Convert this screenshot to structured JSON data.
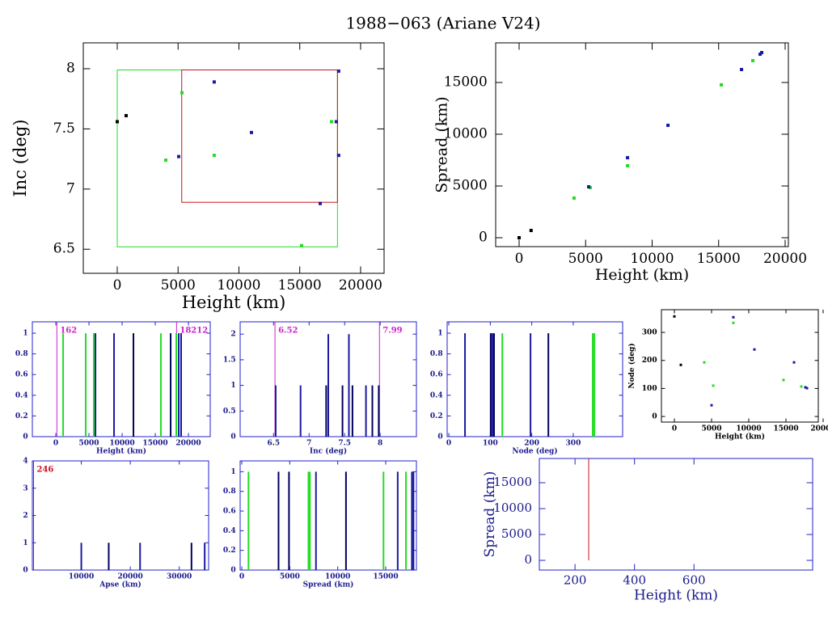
{
  "title": "1988−063 (Ariane V24)",
  "chart_data": [
    {
      "type": "scatter",
      "xlabel": "Height (km)",
      "ylabel": "Inc (deg)",
      "xlim": [
        -2790,
        21930
      ],
      "ylim": [
        6.3,
        8.215
      ],
      "xticks": [
        0,
        5000,
        10000,
        15000,
        20000
      ],
      "yticks": [
        6.5,
        7,
        7.5,
        8
      ],
      "boxes": [
        {
          "color": "#22dd22",
          "x": [
            0,
            18100
          ],
          "y": [
            6.52,
            7.99
          ]
        },
        {
          "color": "#cc1122",
          "x": [
            5300,
            18100
          ],
          "y": [
            6.89,
            7.99
          ]
        }
      ],
      "series": [
        {
          "color": "#000000",
          "x": [
            0,
            730
          ],
          "values": [
            7.56,
            7.61
          ]
        },
        {
          "color": "#22dd22",
          "x": [
            3990,
            5320,
            7970,
            15150,
            17610
          ],
          "values": [
            7.24,
            7.8,
            7.28,
            6.53,
            7.56
          ]
        },
        {
          "color": "#1a1aa0",
          "x": [
            5050,
            7970,
            11030,
            16680,
            18000,
            18200,
            18200
          ],
          "values": [
            7.27,
            7.89,
            7.47,
            6.88,
            7.56,
            7.98,
            7.28
          ]
        }
      ]
    },
    {
      "type": "scatter",
      "xlabel": "Height (km)",
      "ylabel": "Spread (km)",
      "xlim": [
        -1763,
        20243
      ],
      "ylim": [
        -859,
        18828
      ],
      "xticks": [
        0,
        5000,
        10000,
        15000,
        20000
      ],
      "yticks": [
        0,
        5000,
        10000,
        15000
      ],
      "series": [
        {
          "color": "#000000",
          "x": [
            0,
            900
          ],
          "values": [
            0,
            700
          ]
        },
        {
          "color": "#22dd22",
          "x": [
            4130,
            5350,
            8150,
            15200,
            17570
          ],
          "values": [
            3830,
            4840,
            6950,
            14770,
            17110
          ]
        },
        {
          "color": "#1a1aa0",
          "x": [
            5230,
            8150,
            11190,
            16720,
            18120,
            18240
          ],
          "values": [
            4920,
            7730,
            10860,
            16250,
            17730,
            17890
          ]
        }
      ]
    },
    {
      "type": "spike",
      "xlabel": "Height (km)",
      "xlim": [
        -3540,
        23290
      ],
      "ylim": [
        0,
        1.11
      ],
      "xticks": [
        0,
        5000,
        10000,
        15000,
        20000
      ],
      "yticks": [
        0,
        0.2,
        0.4,
        0.6,
        0.8,
        1
      ],
      "annotations": [
        {
          "x": 162,
          "color": "#cc22cc"
        },
        {
          "x": 18212,
          "color": "#cc22cc"
        }
      ],
      "series": [
        {
          "color": "#22dd22",
          "x": [
            1100,
            4510,
            5730,
            15850,
            18170
          ],
          "values": [
            1,
            1,
            1,
            1,
            1
          ]
        },
        {
          "color": "#1a1aa0",
          "x": [
            5980,
            8780,
            18540,
            18900
          ],
          "values": [
            1,
            1,
            1,
            1
          ]
        },
        {
          "color": "#000060",
          "x": [
            11710,
            17320
          ],
          "values": [
            1,
            1
          ]
        }
      ]
    },
    {
      "type": "spike",
      "xlabel": "Inc (deg)",
      "xlim": [
        6.03,
        8.51
      ],
      "ylim": [
        0,
        2.24
      ],
      "xticks": [
        6.5,
        7,
        7.5,
        8
      ],
      "yticks": [
        0,
        0.5,
        1,
        1.5,
        2
      ],
      "annotations": [
        {
          "x": 6.52,
          "color": "#cc22cc"
        },
        {
          "x": 7.99,
          "color": "#cc22cc"
        }
      ],
      "series": [
        {
          "color": "#1a1aa0",
          "x": [
            6.53,
            6.88,
            7.27,
            7.56,
            7.8
          ],
          "values": [
            1,
            1,
            2,
            2,
            1
          ]
        },
        {
          "color": "#000060",
          "x": [
            7.24,
            7.47,
            7.61,
            7.89,
            7.98
          ],
          "values": [
            1,
            1,
            1,
            1,
            1
          ]
        }
      ]
    },
    {
      "type": "spike",
      "xlabel": "Node (deg)",
      "xlim": [
        -4,
        419
      ],
      "ylim": [
        0,
        1.11
      ],
      "xticks": [
        0,
        100,
        200,
        300
      ],
      "yticks": [
        0,
        0.2,
        0.4,
        0.6,
        0.8,
        1
      ],
      "series": [
        {
          "color": "#1a1aa0",
          "x": [
            39,
            105,
            197
          ],
          "values": [
            1,
            1,
            1
          ]
        },
        {
          "color": "#000060",
          "x": [
            101,
            109,
            240
          ],
          "values": [
            1,
            1,
            1
          ]
        },
        {
          "color": "#22dd22",
          "x": [
            129,
            347,
            351
          ],
          "values": [
            1,
            1,
            1
          ]
        }
      ]
    },
    {
      "type": "scatter",
      "xlabel": "Height (km)",
      "ylabel": "Node (deg)",
      "xlim": [
        -1740,
        19350
      ],
      "ylim": [
        -20,
        381
      ],
      "xticks": [
        0,
        5000,
        10000,
        15000,
        20000
      ],
      "yticks": [
        0,
        100,
        200,
        300
      ],
      "series": [
        {
          "color": "#000000",
          "x": [
            0,
            870
          ],
          "values": [
            357,
            184
          ]
        },
        {
          "color": "#22dd22",
          "x": [
            4020,
            5220,
            7930,
            14670,
            17070
          ],
          "values": [
            193,
            110,
            334,
            130,
            107
          ]
        },
        {
          "color": "#1a1aa0",
          "x": [
            5000,
            7930,
            10760,
            16090,
            17610,
            17830
          ],
          "values": [
            40,
            354,
            239,
            193,
            104,
            101
          ]
        }
      ]
    },
    {
      "type": "spike",
      "xlabel": "Apse (km)",
      "xlim": [
        0,
        36000
      ],
      "ylim": [
        0,
        4.0
      ],
      "xticks": [
        10000,
        20000,
        30000
      ],
      "yticks": [
        0,
        1,
        2,
        3,
        4
      ],
      "annotations": [
        {
          "x": 246,
          "color": "#cc1122"
        }
      ],
      "series": [
        {
          "color": "#1a1aa0",
          "x": [
            10000,
            22000,
            35200
          ],
          "values": [
            1,
            1,
            1
          ]
        },
        {
          "color": "#000060",
          "x": [
            15600,
            32500
          ],
          "values": [
            1,
            1
          ]
        }
      ]
    },
    {
      "type": "spike",
      "xlabel": "Spread (km)",
      "xlim": [
        -170,
        18200
      ],
      "ylim": [
        0,
        1.11
      ],
      "xticks": [
        0,
        5000,
        10000,
        15000
      ],
      "yticks": [
        0,
        0.2,
        0.4,
        0.6,
        0.8,
        1
      ],
      "series": [
        {
          "color": "#22dd22",
          "x": [
            700,
            6950,
            7100,
            14770,
            17110
          ],
          "values": [
            1,
            1,
            1,
            1,
            1
          ]
        },
        {
          "color": "#000060",
          "x": [
            3830,
            4920,
            10860
          ],
          "values": [
            1,
            1,
            1
          ]
        },
        {
          "color": "#1a1aa0",
          "x": [
            7730,
            16250,
            17730,
            17890
          ],
          "values": [
            1,
            1,
            1,
            1
          ]
        }
      ]
    },
    {
      "type": "line",
      "xlabel": "Height (km)",
      "ylabel": "Spread (km)",
      "xlim": [
        80,
        999
      ],
      "ylim": [
        -1875,
        19690
      ],
      "xticks": [
        200,
        400,
        600
      ],
      "yticks": [
        0,
        5000,
        10000,
        15000
      ],
      "series": [
        {
          "color": "#cc1122",
          "x": [
            246,
            246
          ],
          "values": [
            0,
            19690
          ]
        }
      ]
    }
  ]
}
